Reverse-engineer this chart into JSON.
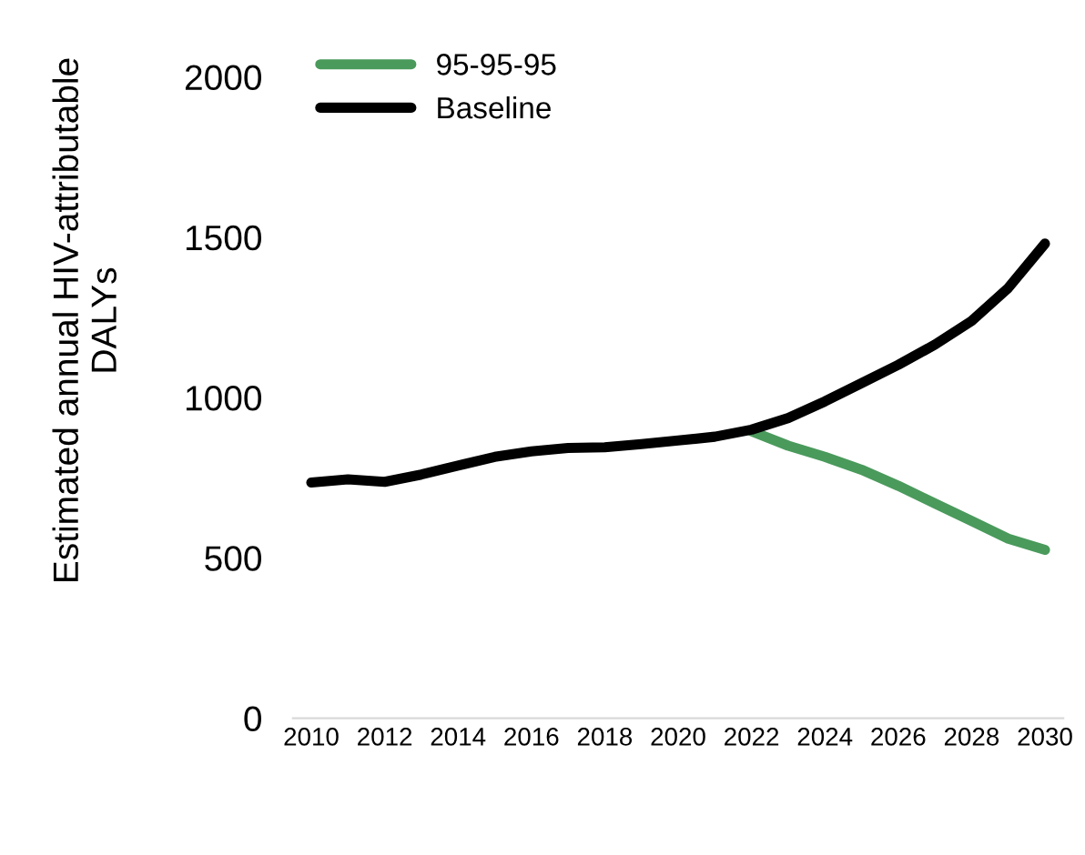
{
  "chart_data": {
    "type": "line",
    "ylabel": "Estimated annual HIV-attributable DALYs",
    "categories": [
      "2010",
      null,
      "2012",
      null,
      "2014",
      null,
      "2016",
      null,
      "2018",
      null,
      "2020",
      null,
      "2022",
      null,
      "2024",
      null,
      "2026",
      null,
      "2028",
      null,
      "2030"
    ],
    "series": [
      {
        "name": "95-95-95",
        "color": "#4a9a5c",
        "values": [
          null,
          null,
          null,
          null,
          null,
          null,
          null,
          null,
          null,
          null,
          null,
          null,
          895,
          850,
          815,
          775,
          725,
          670,
          615,
          560,
          525
        ]
      },
      {
        "name": "Baseline",
        "color": "#000000",
        "values": [
          735,
          745,
          737,
          760,
          788,
          815,
          832,
          843,
          845,
          855,
          866,
          878,
          900,
          936,
          988,
          1045,
          1102,
          1165,
          1239,
          1342,
          1480
        ]
      }
    ],
    "ylim": [
      0,
      2000
    ],
    "yticks": [
      0,
      500,
      1000,
      1500,
      2000
    ],
    "grid": false,
    "legend": "top left",
    "marker": "none",
    "line_style": "solid"
  }
}
